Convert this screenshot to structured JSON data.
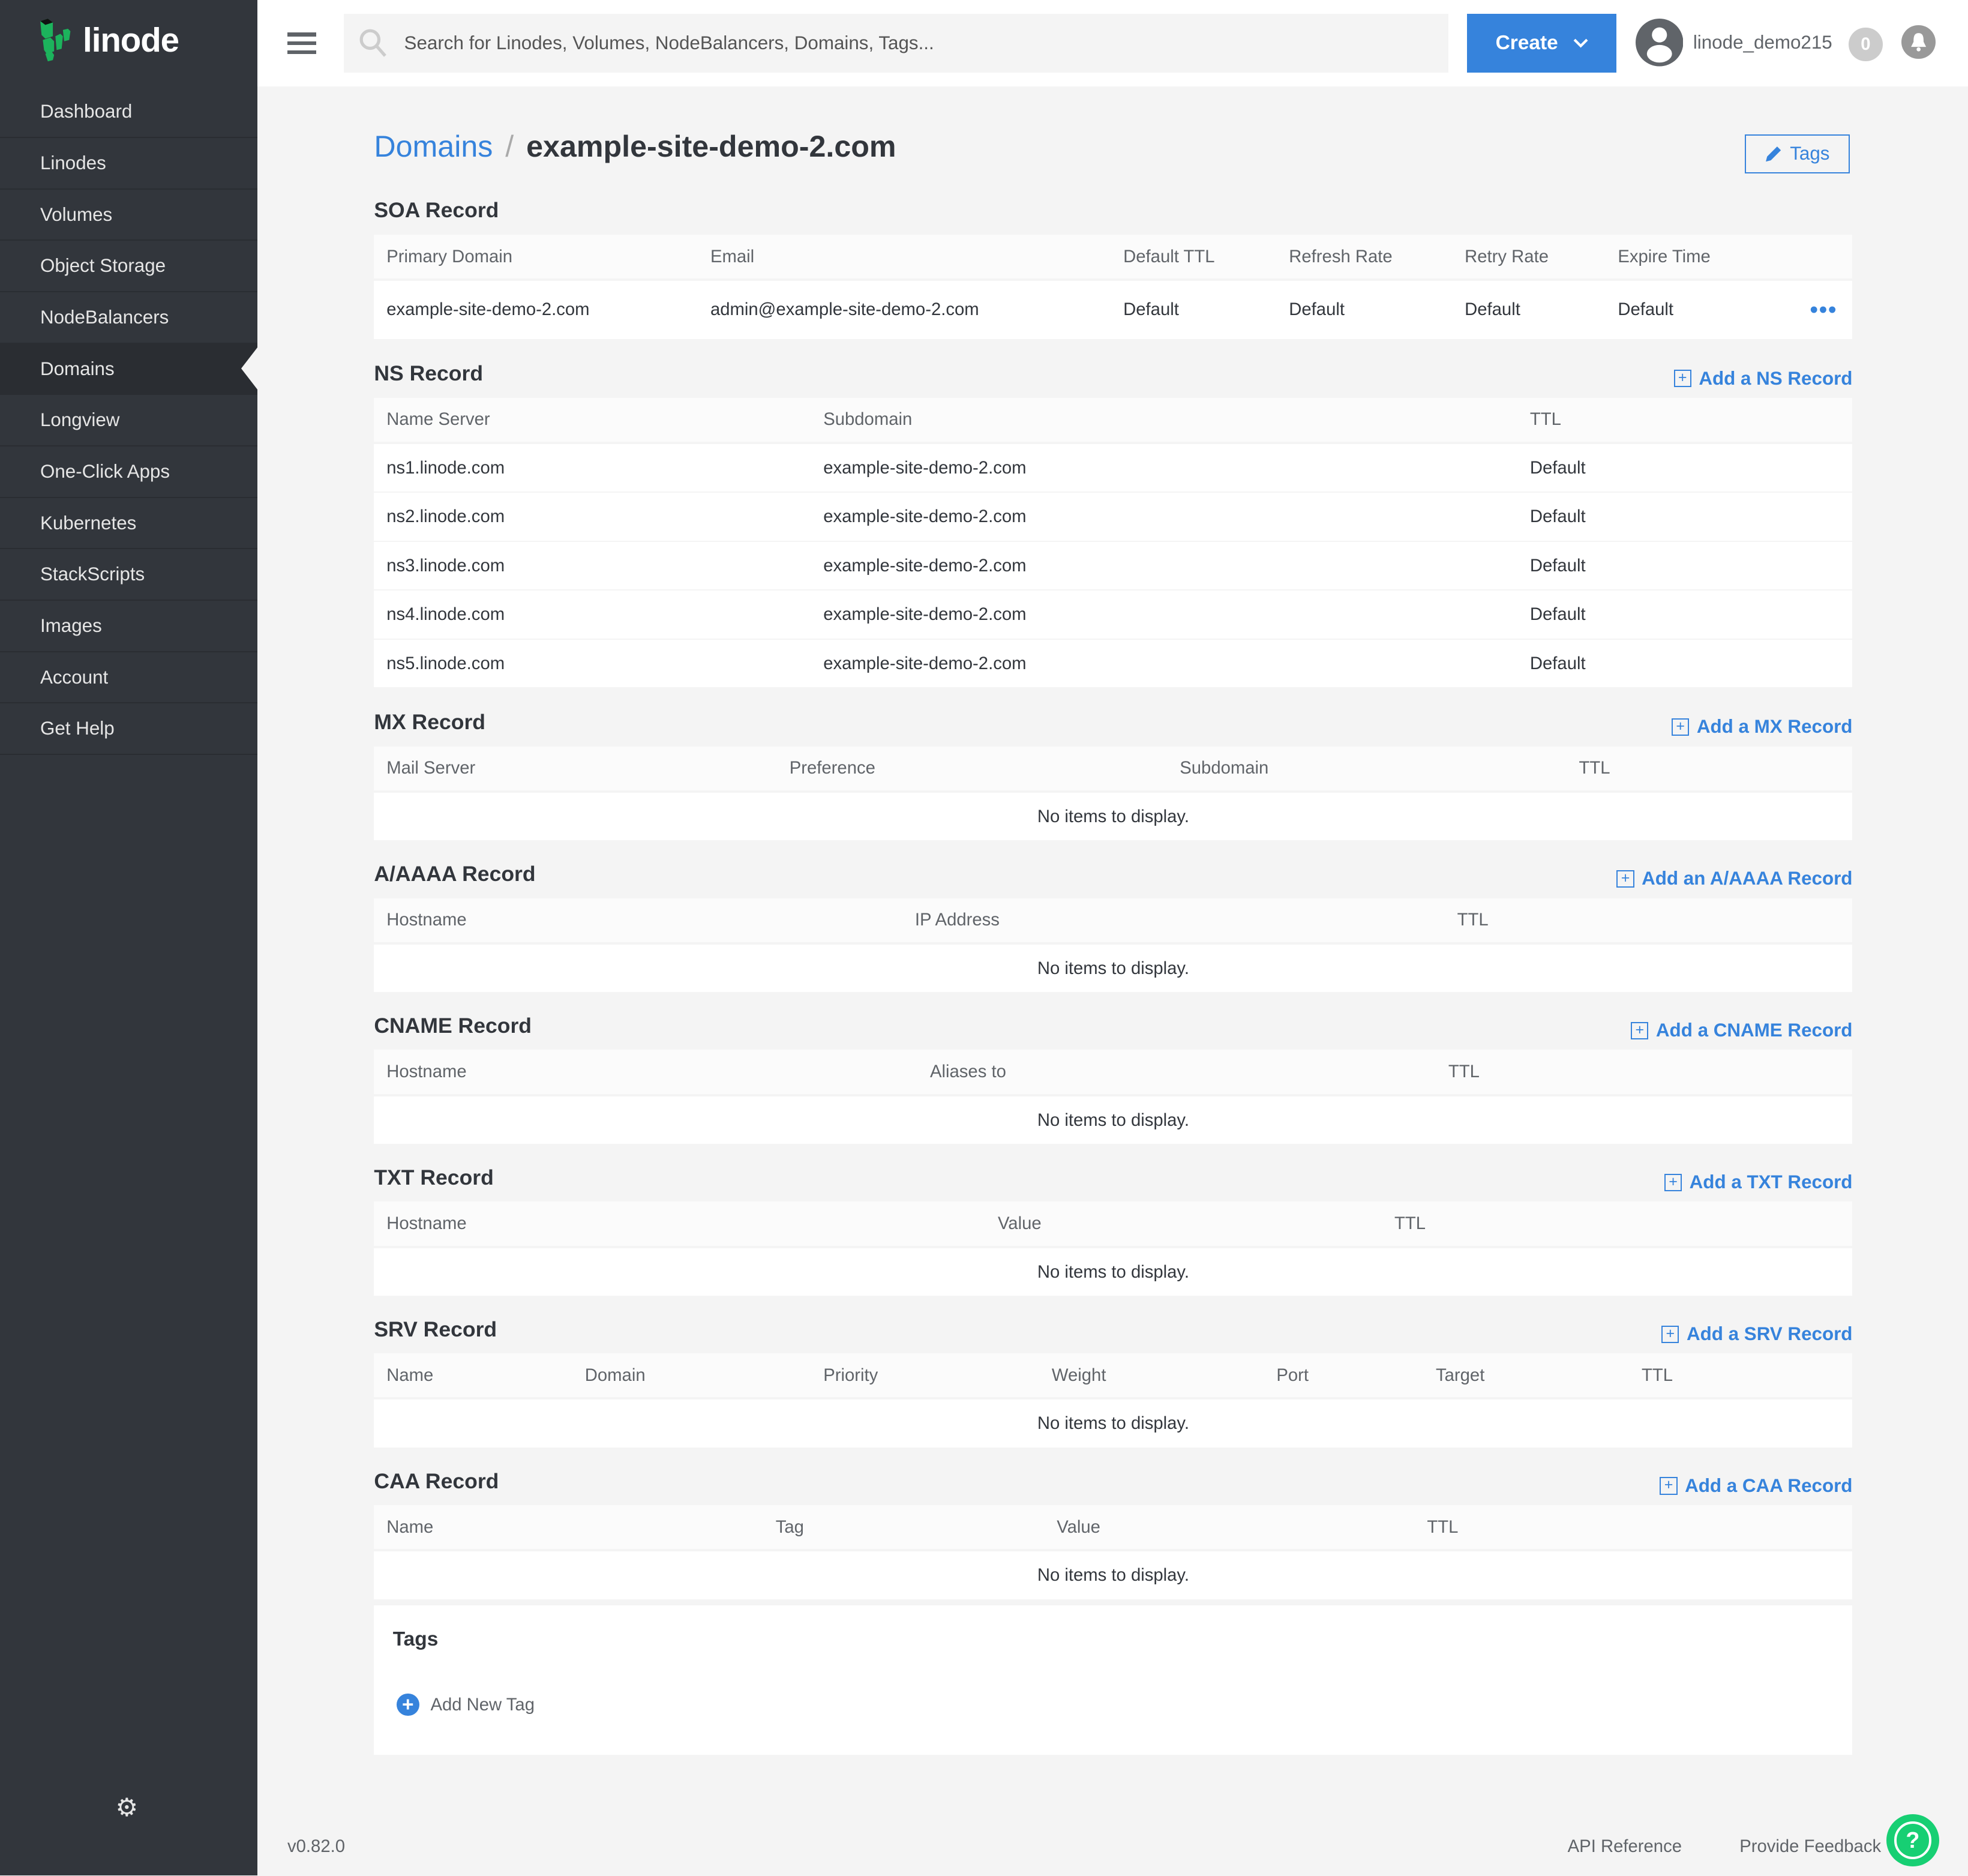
{
  "brand": {
    "name": "linode",
    "colors": {
      "accent": "#3683dc",
      "sidebar": "#32363c",
      "logo_green": "#1cb35c"
    }
  },
  "sidebar": {
    "items": [
      {
        "label": "Dashboard"
      },
      {
        "label": "Linodes"
      },
      {
        "label": "Volumes"
      },
      {
        "label": "Object Storage"
      },
      {
        "label": "NodeBalancers"
      },
      {
        "label": "Domains",
        "active": true
      },
      {
        "label": "Longview"
      },
      {
        "label": "One-Click Apps"
      },
      {
        "label": "Kubernetes"
      },
      {
        "label": "StackScripts"
      },
      {
        "label": "Images"
      },
      {
        "label": "Account"
      },
      {
        "label": "Get Help"
      }
    ],
    "settings_icon": "gear-icon"
  },
  "topbar": {
    "search_placeholder": "Search for Linodes, Volumes, NodeBalancers, Domains, Tags...",
    "create_label": "Create",
    "username": "linode_demo215",
    "notification_count": "0"
  },
  "breadcrumb": {
    "parent": "Domains",
    "separator": "/",
    "current": "example-site-demo-2.com"
  },
  "tags_button": "Tags",
  "sections": [
    {
      "title": "SOA Record",
      "add": "",
      "headers": [
        "Primary Domain",
        "Email",
        "Default TTL",
        "Refresh Rate",
        "Retry Rate",
        "Expire Time"
      ],
      "rows": [
        [
          "example-site-demo-2.com",
          "admin@example-site-demo-2.com",
          "Default",
          "Default",
          "Default",
          "Default"
        ]
      ],
      "has_menu": true
    },
    {
      "title": "NS Record",
      "add": "Add a NS Record",
      "headers": [
        "Name Server",
        "Subdomain",
        "TTL"
      ],
      "rows": [
        [
          "ns1.linode.com",
          "example-site-demo-2.com",
          "Default"
        ],
        [
          "ns2.linode.com",
          "example-site-demo-2.com",
          "Default"
        ],
        [
          "ns3.linode.com",
          "example-site-demo-2.com",
          "Default"
        ],
        [
          "ns4.linode.com",
          "example-site-demo-2.com",
          "Default"
        ],
        [
          "ns5.linode.com",
          "example-site-demo-2.com",
          "Default"
        ]
      ]
    },
    {
      "title": "MX Record",
      "add": "Add a MX Record",
      "headers": [
        "Mail Server",
        "Preference",
        "Subdomain",
        "TTL"
      ],
      "rows": [],
      "empty": "No items to display."
    },
    {
      "title": "A/AAAA Record",
      "add": "Add an A/AAAA Record",
      "headers": [
        "Hostname",
        "IP Address",
        "TTL"
      ],
      "rows": [],
      "empty": "No items to display."
    },
    {
      "title": "CNAME Record",
      "add": "Add a CNAME Record",
      "headers": [
        "Hostname",
        "Aliases to",
        "TTL"
      ],
      "rows": [],
      "empty": "No items to display."
    },
    {
      "title": "TXT Record",
      "add": "Add a TXT Record",
      "headers": [
        "Hostname",
        "Value",
        "TTL"
      ],
      "rows": [],
      "empty": "No items to display."
    },
    {
      "title": "SRV Record",
      "add": "Add a SRV Record",
      "headers": [
        "Name",
        "Domain",
        "Priority",
        "Weight",
        "Port",
        "Target",
        "TTL"
      ],
      "rows": [],
      "empty": "No items to display."
    },
    {
      "title": "CAA Record",
      "add": "Add a CAA Record",
      "headers": [
        "Name",
        "Tag",
        "Value",
        "TTL"
      ],
      "rows": [],
      "empty": "No items to display."
    }
  ],
  "tags_panel": {
    "title": "Tags",
    "add_label": "Add New Tag"
  },
  "footer": {
    "version": "v0.82.0",
    "links": [
      "API Reference",
      "Provide Feedback"
    ]
  }
}
